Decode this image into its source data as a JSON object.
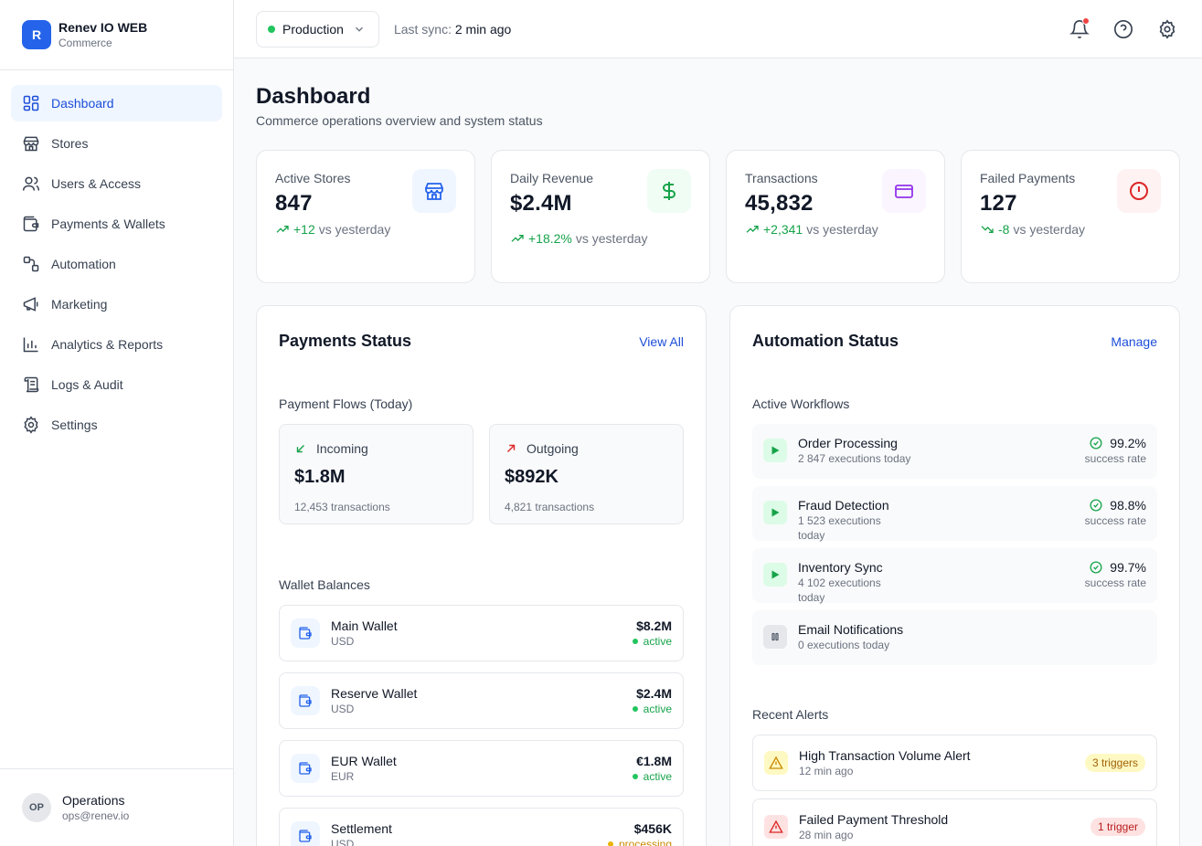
{
  "colors": {
    "accent": "#2563eb",
    "success": "#16a34a",
    "warning": "#ca8a04",
    "danger": "#dc2626"
  },
  "brand": {
    "logo_letter": "R",
    "name": "Renev IO WEB",
    "subtitle": "Commerce"
  },
  "sidebar": {
    "items": [
      {
        "label": "Dashboard",
        "icon": "dashboard-icon",
        "active": true
      },
      {
        "label": "Stores",
        "icon": "store-icon"
      },
      {
        "label": "Users & Access",
        "icon": "users-icon"
      },
      {
        "label": "Payments & Wallets",
        "icon": "wallet-icon"
      },
      {
        "label": "Automation",
        "icon": "workflow-icon"
      },
      {
        "label": "Marketing",
        "icon": "megaphone-icon"
      },
      {
        "label": "Analytics & Reports",
        "icon": "bar-chart-icon"
      },
      {
        "label": "Logs & Audit",
        "icon": "scroll-icon"
      },
      {
        "label": "Settings",
        "icon": "gear-icon"
      }
    ]
  },
  "user": {
    "initials": "OP",
    "name": "Operations",
    "email": "ops@renev.io"
  },
  "topbar": {
    "environment": "Production",
    "sync_label": "Last sync:",
    "sync_value": "2 min ago"
  },
  "page": {
    "title": "Dashboard",
    "subtitle": "Commerce operations overview and system status"
  },
  "stats": [
    {
      "label": "Active Stores",
      "value": "847",
      "delta": "+12",
      "delta_suffix": "vs yesterday",
      "trend": "up",
      "icon": "store-icon"
    },
    {
      "label": "Daily Revenue",
      "value": "$2.4M",
      "delta": "+18.2%",
      "delta_suffix": "vs yesterday",
      "trend": "up",
      "icon": "dollar-icon"
    },
    {
      "label": "Transactions",
      "value": "45,832",
      "delta": "+2,341",
      "delta_suffix": "vs yesterday",
      "trend": "up",
      "icon": "credit-card-icon"
    },
    {
      "label": "Failed Payments",
      "value": "127",
      "delta": "-8",
      "delta_suffix": "vs yesterday",
      "trend": "down",
      "icon": "alert-circle-icon"
    }
  ],
  "payments": {
    "title": "Payments Status",
    "link": "View All",
    "flows_label": "Payment Flows (Today)",
    "flows": [
      {
        "label": "Incoming",
        "value": "$1.8M",
        "sub": "12,453 transactions",
        "icon": "arrow-down-left-icon"
      },
      {
        "label": "Outgoing",
        "value": "$892K",
        "sub": "4,821 transactions",
        "icon": "arrow-up-right-icon"
      }
    ],
    "wallets_label": "Wallet Balances",
    "wallets": [
      {
        "name": "Main Wallet",
        "currency": "USD",
        "amount": "$8.2M",
        "status": "active"
      },
      {
        "name": "Reserve Wallet",
        "currency": "USD",
        "amount": "$2.4M",
        "status": "active"
      },
      {
        "name": "EUR Wallet",
        "currency": "EUR",
        "amount": "€1.8M",
        "status": "active"
      },
      {
        "name": "Settlement",
        "currency": "USD",
        "amount": "$456K",
        "status": "processing"
      }
    ]
  },
  "automation": {
    "title": "Automation Status",
    "link": "Manage",
    "workflows_label": "Active Workflows",
    "workflows": [
      {
        "name": "Order Processing",
        "sub": "2 847 executions today",
        "rate": "99.2%",
        "rate_label": "success rate",
        "state": "running"
      },
      {
        "name": "Fraud Detection",
        "sub": "1 523 executions today",
        "rate": "98.8%",
        "rate_label": "success rate",
        "state": "running"
      },
      {
        "name": "Inventory Sync",
        "sub": "4 102 executions today",
        "rate": "99.7%",
        "rate_label": "success rate",
        "state": "running"
      },
      {
        "name": "Email Notifications",
        "sub": "0 executions today",
        "state": "paused"
      }
    ],
    "alerts_label": "Recent Alerts",
    "alerts": [
      {
        "title": "High Transaction Volume Alert",
        "time": "12 min ago",
        "badge": "3 triggers",
        "level": "warning"
      },
      {
        "title": "Failed Payment Threshold",
        "time": "28 min ago",
        "badge": "1 trigger",
        "level": "danger"
      }
    ]
  }
}
